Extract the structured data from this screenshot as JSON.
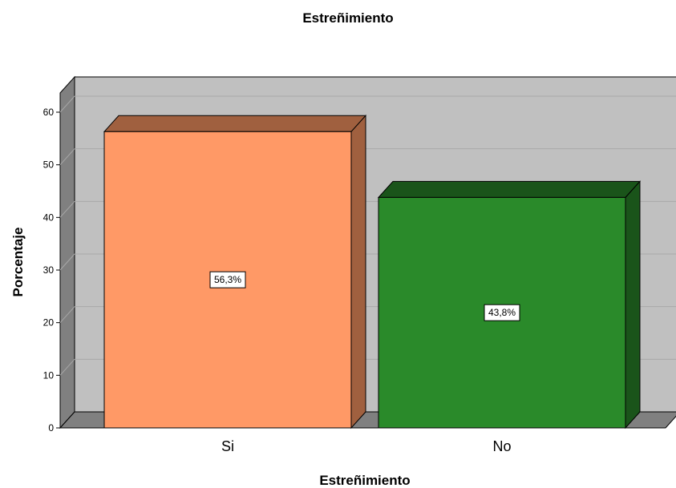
{
  "chart_data": {
    "type": "bar",
    "title": "Estreñimiento",
    "xlabel": "Estreñimiento",
    "ylabel": "Porcentaje",
    "categories": [
      "Si",
      "No"
    ],
    "values": [
      56.3,
      43.8
    ],
    "data_labels": [
      "56,3%",
      "43,8%"
    ],
    "yticks": [
      "0",
      "10",
      "20",
      "30",
      "40",
      "50",
      "60"
    ],
    "ylim": [
      0,
      60
    ],
    "grid": true,
    "style": "3d",
    "colors": {
      "bars": [
        "#FF9966",
        "#2A8A2A"
      ],
      "bar_sides": [
        "#A0603F",
        "#1A541A"
      ],
      "plot_bg": "#C0C0C0",
      "floor": "#808080"
    }
  }
}
